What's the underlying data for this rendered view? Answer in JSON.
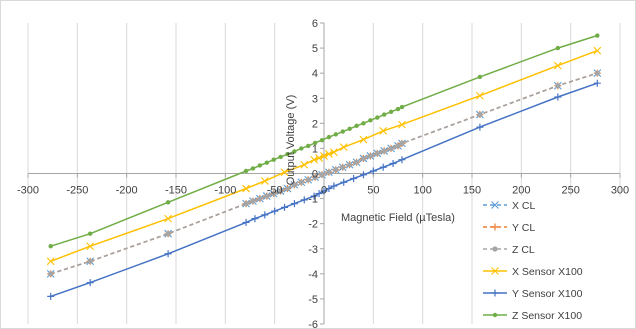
{
  "chart_data": {
    "type": "scatter",
    "xlabel": "Magnetic Field (µTesla)",
    "ylabel": "Output Voltage (V)",
    "xlim": [
      -300,
      300
    ],
    "ylim": [
      -6,
      6
    ],
    "x_ticks": [
      -300,
      -250,
      -200,
      -150,
      -100,
      -50,
      0,
      50,
      100,
      150,
      200,
      250,
      300
    ],
    "y_ticks": [
      -6,
      -5,
      -4,
      -3,
      -2,
      -1,
      0,
      1,
      2,
      3,
      4,
      5,
      6
    ],
    "grid": "vertical",
    "legend_position": "bottom-right",
    "series": [
      {
        "name": "X CL",
        "color": "#5B9BD5",
        "dash": "dashed",
        "marker": "x",
        "x": [
          -277,
          -237,
          -158,
          -79,
          -72,
          -65,
          -58,
          -51,
          -44,
          -37,
          -30,
          -23,
          -16,
          -9,
          -2,
          5,
          12,
          19,
          26,
          33,
          40,
          47,
          54,
          61,
          68,
          75,
          79,
          158,
          237,
          277
        ],
        "y": [
          -4.0,
          -3.5,
          -2.4,
          -1.2,
          -1.1,
          -1.0,
          -0.9,
          -0.8,
          -0.7,
          -0.6,
          -0.45,
          -0.35,
          -0.25,
          -0.15,
          -0.05,
          0.05,
          0.15,
          0.25,
          0.35,
          0.45,
          0.6,
          0.7,
          0.8,
          0.9,
          1.0,
          1.1,
          1.2,
          2.35,
          3.5,
          4.0
        ]
      },
      {
        "name": "Y CL",
        "color": "#ED7D31",
        "dash": "dashed",
        "marker": "plus",
        "x": [
          -277,
          -237,
          -158,
          -79,
          -72,
          -65,
          -58,
          -51,
          -44,
          -37,
          -30,
          -23,
          -16,
          -9,
          -2,
          5,
          12,
          19,
          26,
          33,
          40,
          47,
          54,
          61,
          68,
          75,
          79,
          158,
          237,
          277
        ],
        "y": [
          -4.0,
          -3.5,
          -2.4,
          -1.2,
          -1.1,
          -1.0,
          -0.9,
          -0.8,
          -0.7,
          -0.6,
          -0.45,
          -0.35,
          -0.25,
          -0.15,
          -0.05,
          0.05,
          0.15,
          0.25,
          0.35,
          0.45,
          0.6,
          0.7,
          0.8,
          0.9,
          1.0,
          1.1,
          1.2,
          2.35,
          3.5,
          4.0
        ]
      },
      {
        "name": "Z CL",
        "color": "#A5A5A5",
        "dash": "dashed",
        "marker": "circle",
        "x": [
          -277,
          -237,
          -158,
          -79,
          -72,
          -65,
          -58,
          -51,
          -44,
          -37,
          -30,
          -23,
          -16,
          -9,
          -2,
          5,
          12,
          19,
          26,
          33,
          40,
          47,
          54,
          61,
          68,
          75,
          79,
          158,
          237,
          277
        ],
        "y": [
          -4.0,
          -3.5,
          -2.4,
          -1.2,
          -1.1,
          -1.0,
          -0.9,
          -0.8,
          -0.7,
          -0.6,
          -0.45,
          -0.35,
          -0.25,
          -0.15,
          -0.05,
          0.05,
          0.15,
          0.25,
          0.35,
          0.45,
          0.6,
          0.7,
          0.8,
          0.9,
          1.0,
          1.1,
          1.2,
          2.35,
          3.5,
          4.0
        ]
      },
      {
        "name": "X Sensor X100",
        "color": "#FFC000",
        "dash": "solid",
        "marker": "x",
        "x": [
          -277,
          -237,
          -158,
          -79,
          -60,
          -40,
          -20,
          -10,
          -5,
          0,
          5,
          10,
          20,
          40,
          60,
          79,
          158,
          237,
          277
        ],
        "y": [
          -3.5,
          -2.9,
          -1.8,
          -0.6,
          -0.3,
          0.05,
          0.35,
          0.55,
          0.62,
          0.7,
          0.78,
          0.85,
          1.05,
          1.35,
          1.7,
          1.95,
          3.1,
          4.3,
          4.9
        ]
      },
      {
        "name": "Y Sensor X100",
        "color": "#4472C4",
        "dash": "solid",
        "marker": "plus",
        "x": [
          -277,
          -237,
          -158,
          -79,
          -70,
          -60,
          -50,
          -40,
          -30,
          -20,
          -10,
          -5,
          0,
          5,
          10,
          20,
          30,
          40,
          50,
          60,
          70,
          79,
          158,
          237,
          277
        ],
        "y": [
          -4.9,
          -4.35,
          -3.2,
          -1.95,
          -1.8,
          -1.65,
          -1.5,
          -1.35,
          -1.2,
          -1.05,
          -0.9,
          -0.8,
          -0.7,
          -0.6,
          -0.5,
          -0.35,
          -0.2,
          -0.05,
          0.1,
          0.25,
          0.4,
          0.55,
          1.85,
          3.05,
          3.6
        ]
      },
      {
        "name": "Z Sensor X100",
        "color": "#70AD47",
        "dash": "solid",
        "marker": "dot",
        "x": [
          -277,
          -237,
          -158,
          -79,
          -72,
          -65,
          -58,
          -51,
          -44,
          -37,
          -30,
          -23,
          -16,
          -9,
          -2,
          5,
          12,
          19,
          26,
          33,
          40,
          47,
          54,
          61,
          68,
          75,
          79,
          158,
          237,
          277
        ],
        "y": [
          -2.9,
          -2.4,
          -1.15,
          0.1,
          0.2,
          0.32,
          0.43,
          0.55,
          0.66,
          0.77,
          0.88,
          1.0,
          1.1,
          1.22,
          1.33,
          1.45,
          1.56,
          1.67,
          1.78,
          1.9,
          2.0,
          2.12,
          2.23,
          2.35,
          2.46,
          2.57,
          2.65,
          3.85,
          5.0,
          5.5
        ]
      }
    ]
  }
}
